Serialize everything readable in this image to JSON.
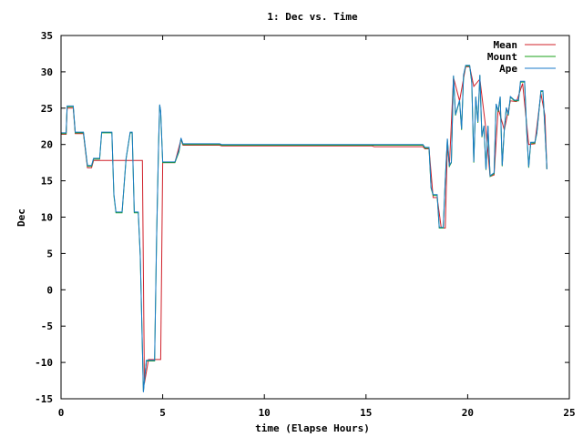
{
  "chart_data": {
    "type": "line",
    "title": "1: Dec vs. Time",
    "xlabel": "time (Elapse Hours)",
    "ylabel": "Dec",
    "xlim": [
      0,
      25
    ],
    "ylim": [
      -15,
      35
    ],
    "xticks": [
      0,
      5,
      10,
      15,
      20,
      25
    ],
    "yticks": [
      -15,
      -10,
      -5,
      0,
      5,
      10,
      15,
      20,
      25,
      30,
      35
    ],
    "grid": false,
    "legend_position": "top-right",
    "series": [
      {
        "name": "Mean",
        "color": "#d0202a",
        "points": [
          [
            0,
            21.4
          ],
          [
            0.25,
            21.4
          ],
          [
            0.3,
            25.0
          ],
          [
            0.6,
            25.0
          ],
          [
            0.7,
            21.5
          ],
          [
            1.1,
            21.5
          ],
          [
            1.3,
            16.8
          ],
          [
            1.5,
            16.8
          ],
          [
            1.6,
            17.8
          ],
          [
            1.9,
            17.8
          ],
          [
            4.0,
            17.8
          ],
          [
            4.1,
            -12.9
          ],
          [
            4.3,
            -9.6
          ],
          [
            4.9,
            -9.6
          ],
          [
            5.0,
            17.5
          ],
          [
            5.6,
            17.5
          ],
          [
            5.9,
            20.7
          ],
          [
            6.0,
            19.9
          ],
          [
            7.8,
            19.9
          ],
          [
            7.9,
            19.8
          ],
          [
            15.3,
            19.8
          ],
          [
            15.4,
            19.7
          ],
          [
            17.8,
            19.7
          ],
          [
            17.9,
            19.4
          ],
          [
            18.1,
            19.4
          ],
          [
            18.3,
            12.7
          ],
          [
            18.5,
            12.7
          ],
          [
            18.7,
            8.5
          ],
          [
            18.9,
            8.5
          ],
          [
            19.0,
            20.0
          ],
          [
            19.1,
            17.0
          ],
          [
            19.3,
            29.2
          ],
          [
            19.6,
            26.0
          ],
          [
            19.9,
            30.7
          ],
          [
            20.1,
            30.7
          ],
          [
            20.3,
            28.0
          ],
          [
            20.6,
            29.0
          ],
          [
            20.9,
            22.0
          ],
          [
            21.1,
            15.6
          ],
          [
            21.3,
            15.8
          ],
          [
            21.5,
            25.0
          ],
          [
            21.8,
            22.0
          ],
          [
            22.1,
            26.0
          ],
          [
            22.4,
            25.9
          ],
          [
            22.7,
            28.4
          ],
          [
            23.0,
            20.0
          ],
          [
            23.3,
            20.1
          ],
          [
            23.6,
            27.0
          ],
          [
            23.8,
            24.0
          ],
          [
            23.9,
            16.6
          ]
        ]
      },
      {
        "name": "Mount",
        "color": "#1aa01a",
        "points": [
          [
            0,
            21.5
          ],
          [
            0.25,
            21.5
          ],
          [
            0.3,
            25.2
          ],
          [
            0.6,
            25.2
          ],
          [
            0.7,
            21.6
          ],
          [
            1.1,
            21.6
          ],
          [
            1.3,
            17.0
          ],
          [
            1.5,
            17.0
          ],
          [
            1.6,
            18.0
          ],
          [
            1.9,
            18.0
          ],
          [
            2.0,
            21.6
          ],
          [
            2.5,
            21.6
          ],
          [
            2.6,
            13.0
          ],
          [
            2.7,
            10.6
          ],
          [
            3.0,
            10.6
          ],
          [
            3.2,
            18.0
          ],
          [
            3.4,
            21.6
          ],
          [
            3.5,
            21.6
          ],
          [
            3.6,
            10.6
          ],
          [
            3.8,
            10.6
          ],
          [
            3.9,
            4.5
          ],
          [
            4.0,
            -8.0
          ],
          [
            4.05,
            -14.0
          ],
          [
            4.1,
            -12.5
          ],
          [
            4.2,
            -9.8
          ],
          [
            4.6,
            -9.8
          ],
          [
            4.7,
            7.0
          ],
          [
            4.8,
            20.0
          ],
          [
            4.85,
            25.4
          ],
          [
            4.9,
            24.5
          ],
          [
            5.0,
            17.5
          ],
          [
            5.6,
            17.5
          ],
          [
            5.8,
            19.0
          ],
          [
            5.9,
            20.8
          ],
          [
            6.0,
            20.0
          ],
          [
            7.8,
            20.0
          ],
          [
            7.9,
            19.9
          ],
          [
            15.3,
            19.9
          ],
          [
            15.4,
            19.9
          ],
          [
            17.8,
            19.9
          ],
          [
            17.9,
            19.5
          ],
          [
            18.1,
            19.5
          ],
          [
            18.2,
            14.0
          ],
          [
            18.3,
            13.0
          ],
          [
            18.5,
            13.0
          ],
          [
            18.6,
            8.5
          ],
          [
            18.8,
            8.5
          ],
          [
            18.9,
            15.0
          ],
          [
            19.0,
            20.7
          ],
          [
            19.1,
            17.0
          ],
          [
            19.2,
            17.5
          ],
          [
            19.3,
            29.4
          ],
          [
            19.4,
            24.0
          ],
          [
            19.6,
            26.0
          ],
          [
            19.7,
            22.0
          ],
          [
            19.8,
            29.5
          ],
          [
            19.9,
            30.8
          ],
          [
            20.1,
            30.8
          ],
          [
            20.2,
            28.5
          ],
          [
            20.3,
            17.5
          ],
          [
            20.4,
            26.5
          ],
          [
            20.5,
            23.0
          ],
          [
            20.6,
            29.5
          ],
          [
            20.7,
            21.0
          ],
          [
            20.8,
            22.5
          ],
          [
            20.9,
            16.5
          ],
          [
            21.0,
            22.5
          ],
          [
            21.1,
            15.6
          ],
          [
            21.3,
            16.0
          ],
          [
            21.4,
            25.5
          ],
          [
            21.5,
            24.5
          ],
          [
            21.6,
            26.5
          ],
          [
            21.7,
            17.0
          ],
          [
            21.8,
            22.0
          ],
          [
            21.9,
            25.0
          ],
          [
            22.0,
            24.0
          ],
          [
            22.1,
            26.5
          ],
          [
            22.3,
            26.0
          ],
          [
            22.5,
            26.0
          ],
          [
            22.6,
            28.6
          ],
          [
            22.8,
            28.6
          ],
          [
            22.9,
            22.0
          ],
          [
            23.0,
            16.8
          ],
          [
            23.1,
            20.2
          ],
          [
            23.3,
            20.2
          ],
          [
            23.4,
            21.5
          ],
          [
            23.6,
            27.3
          ],
          [
            23.7,
            27.3
          ],
          [
            23.8,
            22.0
          ],
          [
            23.9,
            16.6
          ]
        ]
      },
      {
        "name": "Ape",
        "color": "#1a7ac8",
        "points": [
          [
            0,
            21.6
          ],
          [
            0.25,
            21.6
          ],
          [
            0.3,
            25.3
          ],
          [
            0.6,
            25.3
          ],
          [
            0.7,
            21.7
          ],
          [
            1.1,
            21.7
          ],
          [
            1.3,
            17.1
          ],
          [
            1.5,
            17.1
          ],
          [
            1.6,
            18.1
          ],
          [
            1.9,
            18.1
          ],
          [
            2.0,
            21.7
          ],
          [
            2.5,
            21.7
          ],
          [
            2.6,
            13.2
          ],
          [
            2.7,
            10.7
          ],
          [
            3.0,
            10.7
          ],
          [
            3.2,
            18.1
          ],
          [
            3.4,
            21.7
          ],
          [
            3.5,
            21.7
          ],
          [
            3.6,
            10.7
          ],
          [
            3.8,
            10.7
          ],
          [
            3.9,
            4.7
          ],
          [
            4.0,
            -8.0
          ],
          [
            4.05,
            -14.1
          ],
          [
            4.1,
            -12.5
          ],
          [
            4.2,
            -9.7
          ],
          [
            4.6,
            -9.7
          ],
          [
            4.7,
            7.2
          ],
          [
            4.8,
            20.2
          ],
          [
            4.85,
            25.5
          ],
          [
            4.9,
            24.6
          ],
          [
            5.0,
            17.6
          ],
          [
            5.6,
            17.6
          ],
          [
            5.8,
            19.2
          ],
          [
            5.9,
            20.9
          ],
          [
            6.0,
            20.1
          ],
          [
            7.8,
            20.1
          ],
          [
            7.9,
            20.0
          ],
          [
            15.3,
            20.0
          ],
          [
            15.4,
            20.0
          ],
          [
            17.8,
            20.0
          ],
          [
            17.9,
            19.6
          ],
          [
            18.1,
            19.6
          ],
          [
            18.2,
            14.1
          ],
          [
            18.3,
            13.1
          ],
          [
            18.5,
            13.1
          ],
          [
            18.6,
            8.6
          ],
          [
            18.8,
            8.6
          ],
          [
            18.9,
            15.1
          ],
          [
            19.0,
            20.8
          ],
          [
            19.1,
            17.1
          ],
          [
            19.2,
            17.6
          ],
          [
            19.3,
            29.5
          ],
          [
            19.4,
            24.1
          ],
          [
            19.6,
            26.1
          ],
          [
            19.7,
            22.1
          ],
          [
            19.8,
            29.6
          ],
          [
            19.9,
            30.9
          ],
          [
            20.1,
            30.9
          ],
          [
            20.2,
            28.6
          ],
          [
            20.3,
            17.6
          ],
          [
            20.4,
            26.6
          ],
          [
            20.5,
            23.1
          ],
          [
            20.6,
            29.6
          ],
          [
            20.7,
            21.1
          ],
          [
            20.8,
            22.6
          ],
          [
            20.9,
            16.6
          ],
          [
            21.0,
            22.6
          ],
          [
            21.1,
            15.7
          ],
          [
            21.3,
            16.1
          ],
          [
            21.4,
            25.6
          ],
          [
            21.5,
            24.6
          ],
          [
            21.6,
            26.6
          ],
          [
            21.7,
            17.1
          ],
          [
            21.8,
            22.1
          ],
          [
            21.9,
            25.1
          ],
          [
            22.0,
            24.1
          ],
          [
            22.1,
            26.6
          ],
          [
            22.3,
            26.1
          ],
          [
            22.5,
            26.1
          ],
          [
            22.6,
            28.7
          ],
          [
            22.8,
            28.7
          ],
          [
            22.9,
            22.1
          ],
          [
            23.0,
            16.9
          ],
          [
            23.1,
            20.3
          ],
          [
            23.3,
            20.3
          ],
          [
            23.4,
            21.6
          ],
          [
            23.6,
            27.4
          ],
          [
            23.7,
            27.4
          ],
          [
            23.8,
            22.1
          ],
          [
            23.9,
            16.6
          ]
        ]
      }
    ]
  }
}
